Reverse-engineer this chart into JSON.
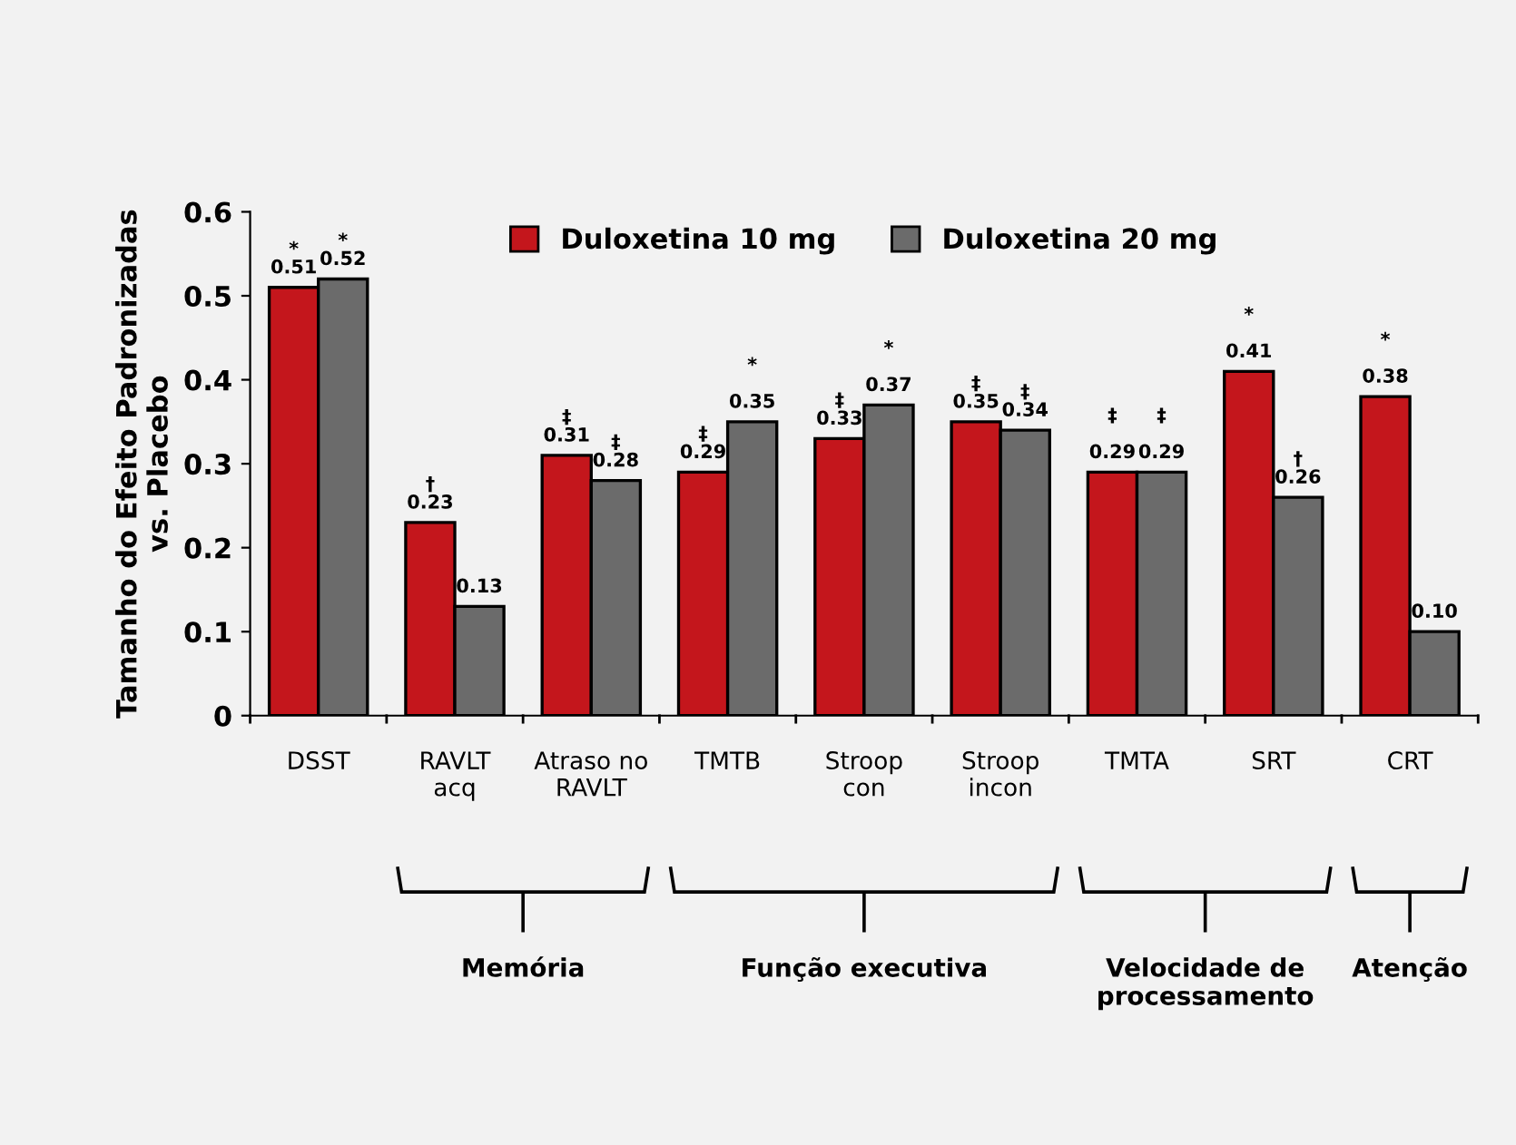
{
  "chart_data": {
    "type": "bar",
    "ylabel": "Tamanho do Efeito Padronizadas\nvs. Placebo",
    "categories": [
      "DSST",
      "RAVLT\nacq",
      "Atraso no\nRAVLT",
      "TMTB",
      "Stroop\ncon",
      "Stroop\nincon",
      "TMTA",
      "SRT",
      "CRT"
    ],
    "series": [
      {
        "name": "Duloxetina 10 mg",
        "color": "#c4161c",
        "values": [
          0.51,
          0.23,
          0.31,
          0.29,
          0.33,
          0.35,
          0.29,
          0.41,
          0.38
        ],
        "value_labels": [
          "*\n0.51",
          "†\n0.23",
          "‡\n0.31",
          "‡\n0.29",
          "‡\n0.33",
          "‡\n0.35",
          "‡\n\n0.29",
          "*\n\n0.41",
          "*\n\n0.38"
        ]
      },
      {
        "name": "Duloxetina 20 mg",
        "color": "#6b6b6b",
        "values": [
          0.52,
          0.13,
          0.28,
          0.35,
          0.37,
          0.34,
          0.29,
          0.26,
          0.1
        ],
        "value_labels": [
          "*\n0.52",
          "0.13",
          "‡\n0.28",
          "*\n\n0.35",
          "*\n\n0.37",
          "‡\n0.34",
          "‡\n\n0.29",
          "†\n0.26",
          "0.10"
        ]
      }
    ],
    "ylim": [
      0,
      0.6
    ],
    "yticks": [
      {
        "value": 0,
        "label": "0"
      },
      0.1,
      0.2,
      0.3,
      0.4,
      0.5,
      0.6
    ],
    "grid": false,
    "legend": "top",
    "annotations": [
      "Memória",
      "Função executiva",
      "Velocidade de\nprocessamento",
      "Atenção"
    ]
  }
}
